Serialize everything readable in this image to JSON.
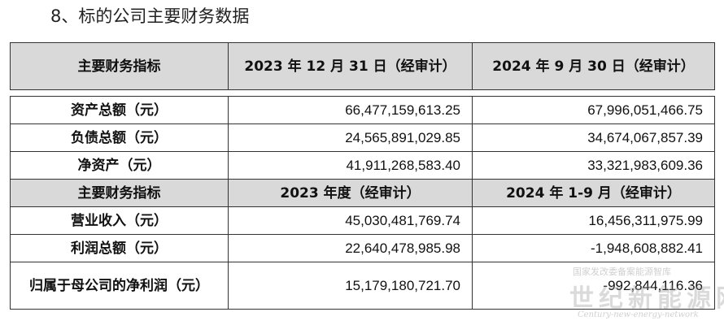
{
  "heading": "8、标的公司主要财务数据",
  "table": {
    "header1": {
      "label": "主要财务指标",
      "col2": "2023 年 12 月 31 日（经审计）",
      "col3": "2024 年 9 月 30 日（经审计）"
    },
    "rows1": [
      {
        "label": "资产总额（元）",
        "v1": "66,477,159,613.25",
        "v2": "67,996,051,466.75"
      },
      {
        "label": "负债总额（元）",
        "v1": "24,565,891,029.85",
        "v2": "34,674,067,857.39"
      },
      {
        "label": "净资产（元）",
        "v1": "41,911,268,583.40",
        "v2": "33,321,983,609.36"
      }
    ],
    "header2": {
      "label": "主要财务指标",
      "col2": "2023 年度（经审计）",
      "col3": "2024 年 1-9 月（经审计）"
    },
    "rows2": [
      {
        "label": "营业收入（元）",
        "v1": "45,030,481,769.74",
        "v2": "16,456,311,975.99"
      },
      {
        "label": "利润总额（元）",
        "v1": "22,640,478,985.98",
        "v2": "-1,948,608,882.41"
      },
      {
        "label": "归属于母公司的净利润（元）",
        "v1": "15,179,180,721.70",
        "v2": "-992,844,116.36"
      }
    ]
  },
  "watermark": {
    "top": "国家发改委备案能源智库",
    "main": "世纪新能源网",
    "sub": "Century-new-energy-network"
  }
}
